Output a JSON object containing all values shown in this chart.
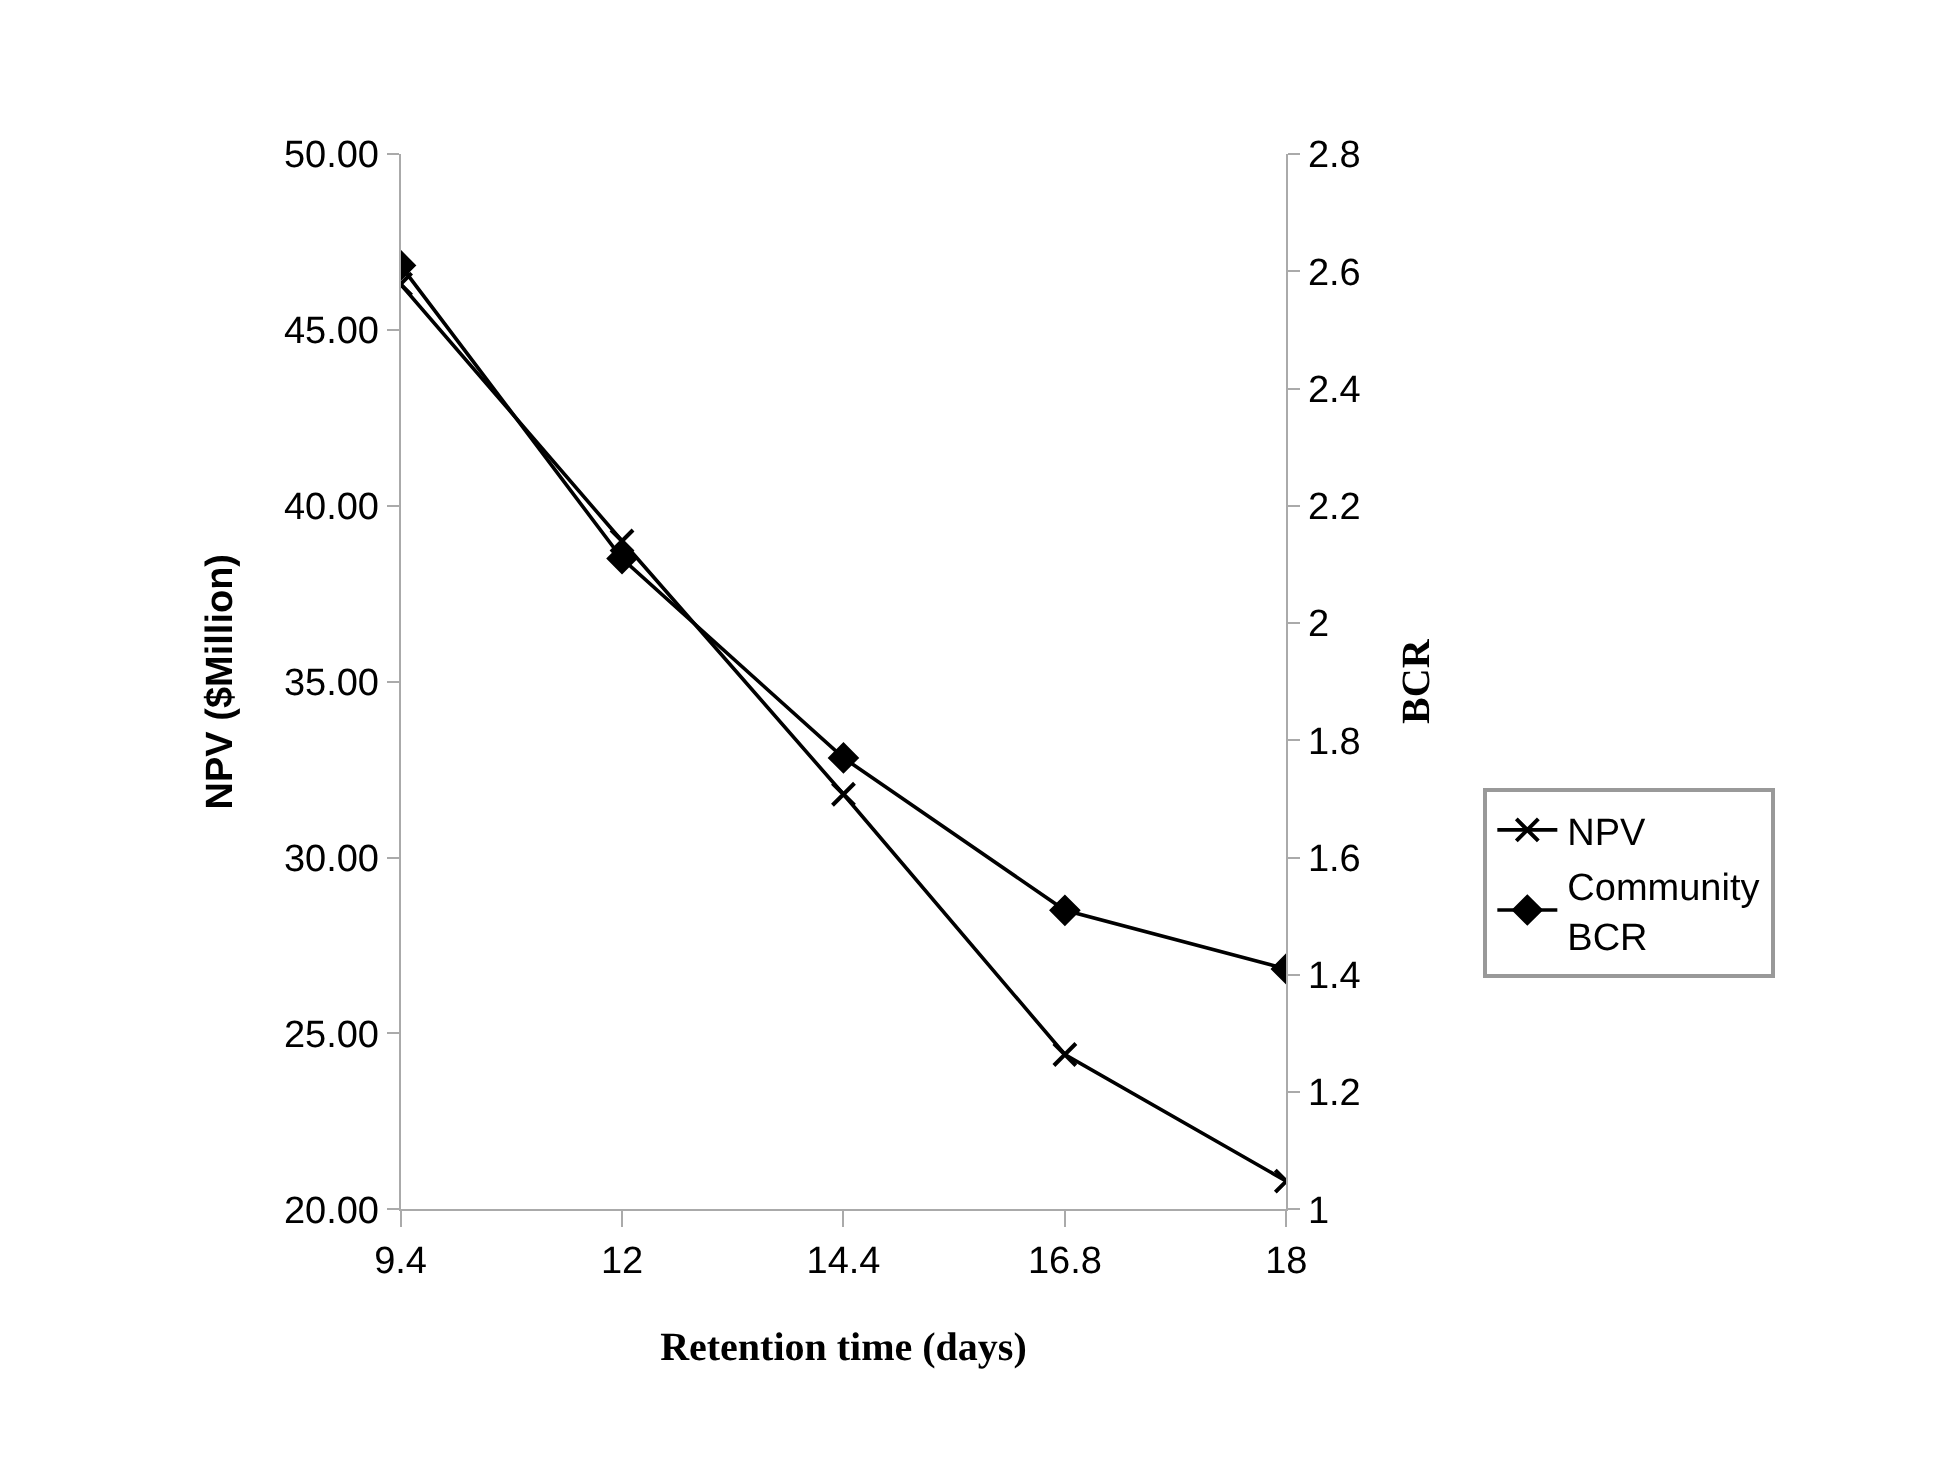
{
  "chart_data": {
    "type": "line",
    "categories": [
      "9.4",
      "12",
      "14.4",
      "16.8",
      "18"
    ],
    "xlabel": "Retention time (days)",
    "ylabel": "NPV ($Million)",
    "y2label": "BCR",
    "series": [
      {
        "name": "NPV",
        "color": "#000000",
        "marker": "cross",
        "values": [
          46.3,
          39.0,
          31.8,
          24.4,
          20.8
        ]
      },
      {
        "name": "Community BCR",
        "color": "#000000",
        "marker": "diamond",
        "axis": "y2",
        "values": [
          2.61,
          2.11,
          1.77,
          1.51,
          1.41
        ]
      }
    ],
    "ylim": [
      20,
      50
    ],
    "yticks": [
      {
        "value": 20,
        "label": "20.00"
      },
      {
        "value": 25,
        "label": "25.00"
      },
      {
        "value": 30,
        "label": "30.00"
      },
      {
        "value": 35,
        "label": "35.00"
      },
      {
        "value": 40,
        "label": "40.00"
      },
      {
        "value": 45,
        "label": "45.00"
      },
      {
        "value": 50,
        "label": "50.00"
      }
    ],
    "y2lim": [
      1,
      2.8
    ],
    "y2ticks": [
      1,
      1.2,
      1.4,
      1.6,
      1.8,
      2,
      2.2,
      2.4,
      2.6,
      2.8
    ],
    "legend": "right",
    "line_style": "solid"
  }
}
